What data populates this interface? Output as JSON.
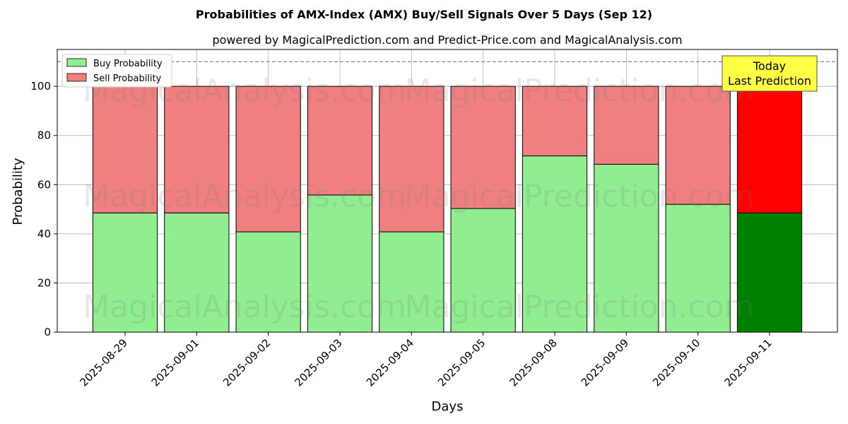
{
  "chart_data": {
    "type": "bar",
    "stacked": true,
    "title": "Probabilities of AMX-Index (AMX) Buy/Sell Signals Over 5 Days (Sep 12)",
    "subtitle": "powered by MagicalPrediction.com and Predict-Price.com and MagicalAnalysis.com",
    "xlabel": "Days",
    "ylabel": "Probability",
    "ylim": [
      0,
      115
    ],
    "yticks": [
      0,
      20,
      40,
      60,
      80,
      100
    ],
    "grid": true,
    "reference_line": 110,
    "categories": [
      "2025-08-29",
      "2025-09-01",
      "2025-09-02",
      "2025-09-03",
      "2025-09-04",
      "2025-09-05",
      "2025-09-08",
      "2025-09-09",
      "2025-09-10",
      "2025-09-11"
    ],
    "series": [
      {
        "name": "Buy Probability",
        "values": [
          48.5,
          48.5,
          40.8,
          55.8,
          40.8,
          50.3,
          71.7,
          68.3,
          52.0,
          48.5
        ],
        "color": "#90ee90",
        "highlight_color": "#008000"
      },
      {
        "name": "Sell Probability",
        "values": [
          51.5,
          51.5,
          59.2,
          44.2,
          59.2,
          49.7,
          28.3,
          31.7,
          48.0,
          51.5
        ],
        "color": "#f08080",
        "highlight_color": "#ff0000"
      }
    ],
    "highlight_index": 9,
    "legend_position": "top-left",
    "annotation": {
      "lines": [
        "Today",
        "Last Prediction"
      ],
      "background": "#ffff44"
    },
    "watermarks": [
      "MagicalAnalysis.com",
      "MagicalPrediction.com"
    ]
  }
}
